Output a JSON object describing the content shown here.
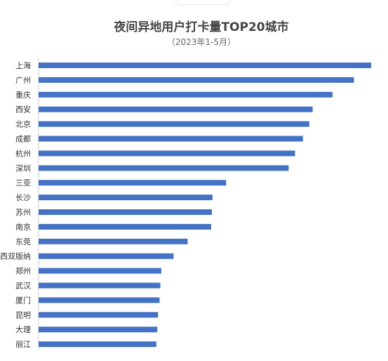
{
  "chart_data": {
    "type": "bar",
    "orientation": "horizontal",
    "title": "夜间异地用户打卡量TOP20城市",
    "subtitle": "（2023年1-5月）",
    "categories": [
      "上海",
      "广州",
      "重庆",
      "西安",
      "北京",
      "成都",
      "杭州",
      "深圳",
      "三亚",
      "长沙",
      "苏州",
      "南京",
      "东莞",
      "西双版纳",
      "郑州",
      "武汉",
      "厦门",
      "昆明",
      "大理",
      "丽江"
    ],
    "values": [
      100,
      94.8,
      88.4,
      82.4,
      81.4,
      79.5,
      77.1,
      75.2,
      56.4,
      52.3,
      52.1,
      51.9,
      44.8,
      40.6,
      36.9,
      36.6,
      36.4,
      35.9,
      35.7,
      35.4
    ],
    "xlim": [
      0,
      100
    ],
    "grid": false,
    "color": "#4472c4"
  }
}
